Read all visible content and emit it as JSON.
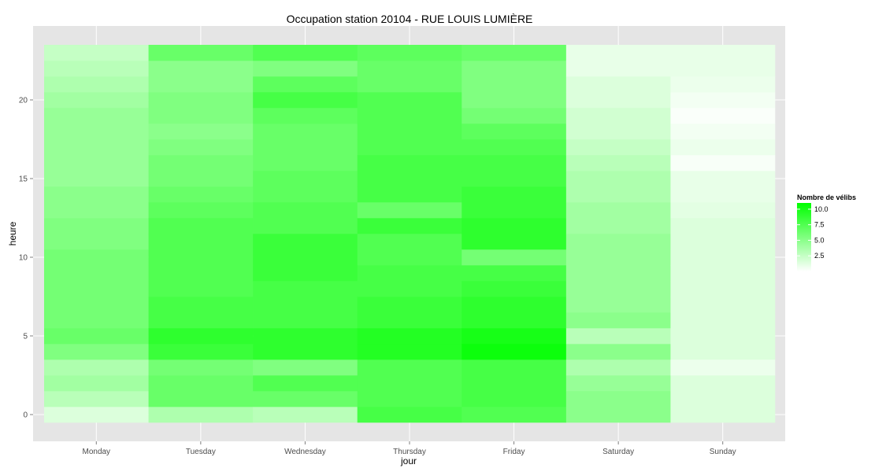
{
  "chart_data": {
    "type": "heatmap",
    "title": "Occupation station 20104 - RUE LOUIS LUMIÈRE",
    "xlabel": "jour",
    "ylabel": "heure",
    "x_categories": [
      "Monday",
      "Tuesday",
      "Wednesday",
      "Thursday",
      "Friday",
      "Saturday",
      "Sunday"
    ],
    "y_values": [
      0,
      1,
      2,
      3,
      4,
      5,
      6,
      7,
      8,
      9,
      10,
      11,
      12,
      13,
      14,
      15,
      16,
      17,
      18,
      19,
      20,
      21,
      22,
      23
    ],
    "y_ticks": [
      0,
      5,
      10,
      15,
      20
    ],
    "ylim": [
      -0.5,
      23.5
    ],
    "grid": true,
    "legend_position": "right",
    "color_scale": {
      "title": "Nombre de vélibs",
      "low_color": "#ffffff",
      "high_color": "#00ff00",
      "min": 0,
      "max": 11,
      "ticks": [
        2.5,
        5.0,
        7.5,
        10.0
      ],
      "tick_labels": [
        "2.5",
        "5.0",
        "7.5",
        "10.0"
      ]
    },
    "values": [
      [
        1.5,
        3.0,
        4.0,
        3.5,
        5.5,
        6.5,
        6.0,
        6.0,
        6.0,
        6.0,
        6.0,
        5.5,
        5.5,
        5.0,
        5.0,
        4.5,
        4.5,
        4.5,
        4.5,
        4.5,
        4.0,
        3.5,
        3.0,
        2.5
      ],
      [
        3.5,
        6.5,
        6.5,
        6.0,
        8.5,
        9.0,
        8.0,
        8.0,
        7.5,
        7.5,
        7.5,
        7.5,
        7.5,
        7.0,
        6.5,
        6.0,
        6.0,
        5.5,
        5.0,
        5.5,
        5.5,
        5.0,
        5.0,
        6.5
      ],
      [
        3.0,
        6.5,
        7.5,
        5.5,
        9.0,
        9.0,
        8.0,
        8.0,
        8.0,
        8.5,
        8.5,
        8.5,
        7.5,
        7.5,
        7.0,
        7.0,
        6.5,
        6.5,
        6.5,
        7.0,
        8.0,
        7.0,
        5.5,
        7.5
      ],
      [
        8.0,
        7.5,
        7.5,
        7.5,
        9.5,
        9.5,
        8.5,
        8.5,
        8.0,
        8.0,
        7.5,
        7.5,
        8.5,
        6.5,
        8.0,
        8.0,
        8.0,
        7.5,
        7.5,
        7.5,
        7.5,
        6.5,
        6.5,
        7.0
      ],
      [
        7.5,
        8.0,
        8.0,
        8.0,
        10.5,
        10.0,
        9.0,
        9.0,
        8.5,
        8.0,
        6.0,
        9.0,
        9.0,
        8.5,
        8.5,
        8.0,
        8.0,
        7.5,
        7.0,
        6.0,
        5.5,
        5.5,
        5.5,
        6.5
      ],
      [
        5.0,
        5.0,
        4.5,
        3.5,
        5.0,
        3.0,
        5.0,
        4.5,
        4.5,
        4.5,
        4.5,
        4.5,
        4.0,
        4.0,
        3.5,
        3.5,
        3.0,
        2.5,
        2.0,
        2.0,
        1.5,
        1.5,
        1.0,
        1.0
      ],
      [
        1.5,
        1.5,
        1.5,
        0.8,
        1.5,
        1.5,
        1.5,
        1.5,
        1.5,
        1.5,
        1.5,
        1.5,
        1.5,
        1.2,
        1.0,
        1.0,
        0.3,
        0.8,
        0.5,
        0.2,
        0.5,
        0.8,
        1.0,
        1.0
      ]
    ]
  }
}
